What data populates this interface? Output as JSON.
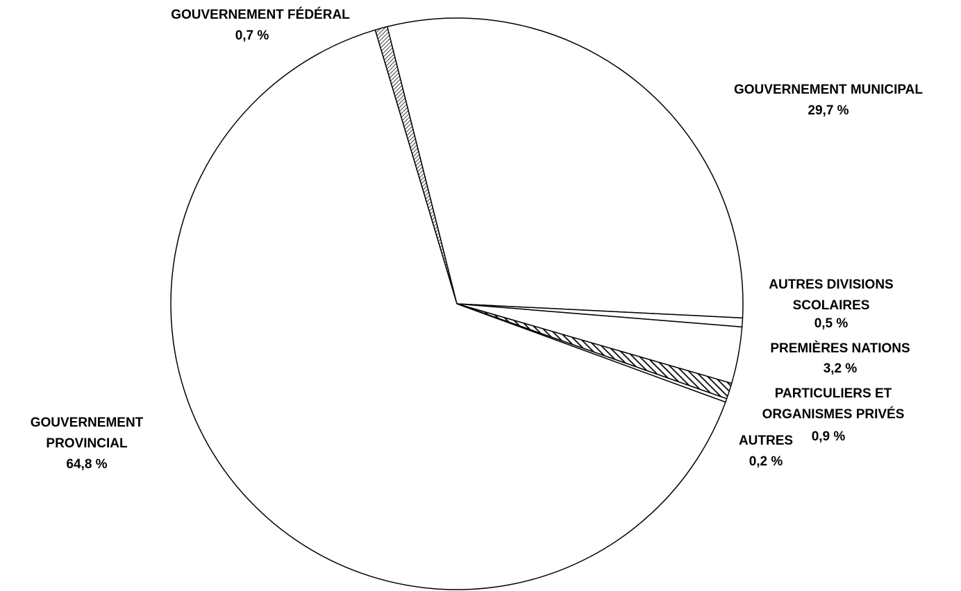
{
  "chart_data": {
    "type": "pie",
    "labels": [
      "GOUVERNEMENT FÉDÉRAL",
      "GOUVERNEMENT MUNICIPAL",
      "AUTRES DIVISIONS\nSCOLAIRES",
      "PREMIÈRES NATIONS",
      "PARTICULIERS ET\nORGANISMES PRIVÉS",
      "AUTRES",
      "GOUVERNEMENT\nPROVINCIAL"
    ],
    "values": [
      0.7,
      29.7,
      0.5,
      3.2,
      0.9,
      0.2,
      64.8
    ],
    "value_labels": [
      "0,7 %",
      "29,7 %",
      "0,5 %",
      "3,2 %",
      "0,9 %",
      "0,2 %",
      "64,8 %"
    ],
    "fills": [
      "hatch-fine",
      "white",
      "white",
      "white",
      "hatch-wide",
      "white",
      "white"
    ],
    "start_angle": -16.6,
    "direction": "clockwise"
  }
}
